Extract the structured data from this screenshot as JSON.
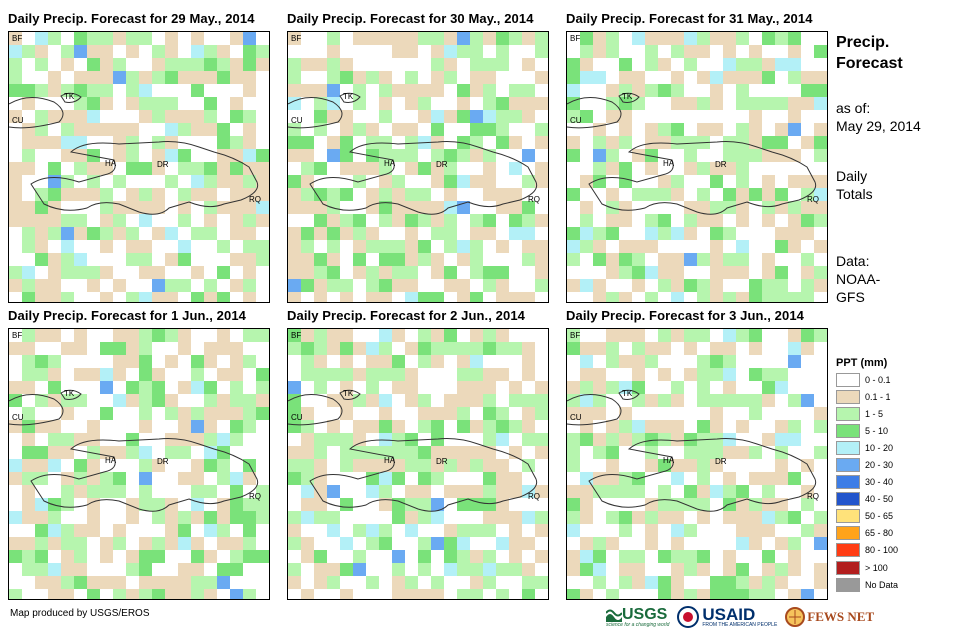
{
  "panels": [
    {
      "title": "Daily Precip. Forecast for 29 May., 2014"
    },
    {
      "title": "Daily Precip. Forecast for 30 May., 2014"
    },
    {
      "title": "Daily Precip. Forecast for 31 May., 2014"
    },
    {
      "title": "Daily Precip. Forecast for 1 Jun., 2014"
    },
    {
      "title": "Daily Precip. Forecast for 2 Jun., 2014"
    },
    {
      "title": "Daily Precip. Forecast for 3 Jun., 2014"
    }
  ],
  "map_labels": {
    "bf": "BF",
    "tk": "TK",
    "cu": "CU",
    "ha": "HA",
    "dr": "DR",
    "rq": "RQ"
  },
  "side": {
    "title_line1": "Precip.",
    "title_line2": "Forecast",
    "asof_line1": "as of:",
    "asof_line2": "May 29, 2014",
    "daily_line1": "Daily",
    "daily_line2": "Totals",
    "data_line1": "Data:",
    "data_line2": "NOAA-",
    "data_line3": "GFS"
  },
  "legend": {
    "title": "PPT (mm)",
    "items": [
      {
        "label": "0 - 0.1",
        "color": "#ffffff"
      },
      {
        "label": "0.1 - 1",
        "color": "#ecd9bb"
      },
      {
        "label": "1 - 5",
        "color": "#b6f5ae"
      },
      {
        "label": "5 - 10",
        "color": "#7ae27a"
      },
      {
        "label": "10 - 20",
        "color": "#b3f0f7"
      },
      {
        "label": "20 - 30",
        "color": "#6aaaf2"
      },
      {
        "label": "30 - 40",
        "color": "#3d7de6"
      },
      {
        "label": "40 - 50",
        "color": "#2255cc"
      },
      {
        "label": "50 - 65",
        "color": "#ffe27a"
      },
      {
        "label": "65 - 80",
        "color": "#ffa31a"
      },
      {
        "label": "80 - 100",
        "color": "#ff3c14"
      },
      {
        "label": "> 100",
        "color": "#b21e1e"
      },
      {
        "label": "No Data",
        "color": "#999999"
      }
    ]
  },
  "credit": "Map produced by USGS/EROS",
  "logos": {
    "usgs": "USGS",
    "usgs_tag": "science for a changing world",
    "usaid": "USAID",
    "usaid_tag": "FROM THE AMERICAN PEOPLE",
    "fews": "FEWS NET"
  }
}
